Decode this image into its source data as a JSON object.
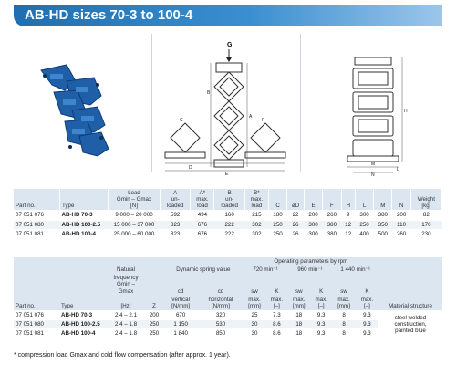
{
  "header": {
    "title": "AB-HD sizes 70-3 to 100-4"
  },
  "drawing": {
    "g_label": "G",
    "dims": [
      "B",
      "A",
      "C",
      "F",
      "E",
      "D",
      "M",
      "N",
      "L",
      "H"
    ]
  },
  "table1": {
    "headers": {
      "part_no": "Part no.",
      "type": "Type",
      "load_line1": "Load",
      "load_line2": "Gmin – Gmax",
      "load_line3": "[N]",
      "a_line1": "A",
      "a_line2": "un-",
      "a_line3": "loaded",
      "astar_line1": "A*",
      "astar_line2": "max.",
      "astar_line3": "load",
      "b_line1": "B",
      "b_line2": "un-",
      "b_line3": "loaded",
      "bstar_line1": "B*",
      "bstar_line2": "max.",
      "bstar_line3": "load",
      "c": "C",
      "od": "øD",
      "e": "E",
      "f": "F",
      "h": "H",
      "l": "L",
      "m": "M",
      "n": "N",
      "weight_line1": "Weight",
      "weight_line2": "[kg]"
    },
    "rows": [
      [
        "07 051 076",
        "AB-HD 70-3",
        "9 000 – 20 000",
        "592",
        "494",
        "160",
        "215",
        "180",
        "22",
        "200",
        "260",
        "9",
        "300",
        "380",
        "200",
        "82"
      ],
      [
        "07 051 080",
        "AB-HD 100-2.5",
        "15 000 – 37 000",
        "823",
        "676",
        "222",
        "302",
        "250",
        "26",
        "300",
        "380",
        "12",
        "250",
        "350",
        "110",
        "170"
      ],
      [
        "07 051 081",
        "AB-HD 100-4",
        "25 000 – 60 000",
        "823",
        "676",
        "222",
        "302",
        "250",
        "26",
        "300",
        "380",
        "12",
        "400",
        "500",
        "260",
        "230"
      ]
    ]
  },
  "table2": {
    "headers": {
      "part_no": "Part no.",
      "type": "Type",
      "freq_line1": "Natural",
      "freq_line2": "frequency",
      "freq_line3": "Gmin – Gmax",
      "freq_line4": "[Hz]",
      "z": "Z",
      "dyn": "Dynamic spring value",
      "cd1": "cd",
      "cd2": "cd",
      "vertical_line1": "vertical",
      "vertical_line2": "[N/mm]",
      "horizontal_line1": "horizontal",
      "horizontal_line2": "[N/mm]",
      "op": "Operating parameters by rpm",
      "rpm1": "720 min⁻¹",
      "rpm2": "960 min⁻¹",
      "rpm3": "1 440 min⁻¹",
      "sw": "sw",
      "k": "K",
      "max": "max.",
      "mm": "[mm]",
      "dash": "[–]",
      "material": "Material structure"
    },
    "rows": [
      [
        "07 051 076",
        "AB-HD 70-3",
        "2.4 – 2.1",
        "200",
        "670",
        "320",
        "25",
        "7.3",
        "18",
        "9.3",
        "8",
        "9.3"
      ],
      [
        "07 051 080",
        "AB-HD 100-2.5",
        "2.4 – 1.8",
        "250",
        "1 150",
        "530",
        "30",
        "8.6",
        "18",
        "9.3",
        "8",
        "9.3"
      ],
      [
        "07 051 081",
        "AB-HD 100-4",
        "2.4 – 1.8",
        "250",
        "1 840",
        "850",
        "30",
        "8.6",
        "18",
        "9.3",
        "8",
        "9.3"
      ]
    ],
    "material_lines": [
      "steel welded",
      "construction,",
      "painted blue"
    ]
  },
  "footnote": "* compression load Gmax and cold flow compensation (after approx. 1 year)."
}
